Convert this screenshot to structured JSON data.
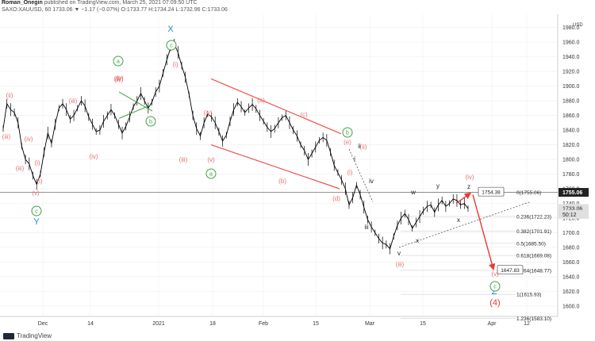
{
  "header": {
    "line1_author": "Roman_Onegin",
    "line1_rest": "published on TradingView.com, March 25, 2021 07:09:50 UTC",
    "line2": "SAXO:XAUUSD, 60  1733.06  ▼ −1.17 (−0.07%)  O:1733.77 H:1734.24 L:1732.96 C:1733.06"
  },
  "brand": {
    "name": "TradingView"
  },
  "chart_data": {
    "type": "line",
    "title": "",
    "series": [
      {
        "values": [
          1842,
          1876,
          1868,
          1864,
          1850,
          1818,
          1800,
          1794,
          1778,
          1766,
          1780,
          1810,
          1836,
          1822,
          1848,
          1870,
          1876,
          1868,
          1855,
          1860,
          1870,
          1880,
          1873,
          1858,
          1848,
          1838,
          1840,
          1852,
          1860,
          1868,
          1860,
          1848,
          1836,
          1845,
          1858,
          1872,
          1880,
          1890,
          1880,
          1870,
          1878,
          1892,
          1900,
          1918,
          1936,
          1952,
          1958,
          1946,
          1928,
          1912,
          1888,
          1860,
          1842,
          1832,
          1850,
          1862,
          1858,
          1850,
          1838,
          1825,
          1833,
          1852,
          1868,
          1878,
          1872,
          1864,
          1870,
          1875,
          1869,
          1860,
          1852,
          1844,
          1838,
          1842,
          1850,
          1857,
          1860,
          1850,
          1840,
          1832,
          1820,
          1812,
          1800,
          1808,
          1817,
          1826,
          1830,
          1826,
          1810,
          1792,
          1782,
          1772,
          1760,
          1738,
          1748,
          1765,
          1752,
          1735,
          1718,
          1708,
          1700,
          1692,
          1686,
          1684,
          1678,
          1695,
          1710,
          1720,
          1726,
          1718,
          1706,
          1714,
          1722,
          1730,
          1736,
          1738,
          1728,
          1738,
          1744,
          1736,
          1740,
          1746,
          1744,
          1738,
          1740,
          1733
        ]
      }
    ],
    "price_axis": {
      "currency": "USD",
      "ticks": [
        1980,
        1960,
        1940,
        1920,
        1900,
        1880,
        1860,
        1840,
        1820,
        1800,
        1780,
        1760,
        1740,
        1720,
        1700,
        1680,
        1660,
        1640,
        1620,
        1600
      ],
      "range": [
        1588,
        1998
      ]
    },
    "time_axis": {
      "labels": [
        "Dec",
        "14",
        "2021",
        "18",
        "Feb",
        "15",
        "Mar",
        "15",
        "Apr",
        "12"
      ]
    },
    "price_markers": [
      {
        "label": "1755.06",
        "price": 1755.06,
        "style": "dark"
      },
      {
        "label": "1733.06",
        "price": 1733.06,
        "style": "light"
      },
      {
        "label": "50:12",
        "price": 1725,
        "style": "light"
      }
    ],
    "fib_levels": [
      {
        "label": "0(1755.06)",
        "price": 1755.06
      },
      {
        "label": "0.236(1722.23)",
        "price": 1722.23
      },
      {
        "label": "0.382(1701.91)",
        "price": 1701.91
      },
      {
        "label": "0.5(1685.50)",
        "price": 1685.5
      },
      {
        "label": "0.618(1669.08)",
        "price": 1669.08
      },
      {
        "label": "0.764(1648.77)",
        "price": 1648.77
      },
      {
        "label": "1(1615.93)",
        "price": 1615.93
      },
      {
        "label": "1.236(1583.10)",
        "price": 1583.1
      }
    ],
    "callouts": [
      {
        "label": "1754.38",
        "price": 1754.38
      },
      {
        "label": "1647.83",
        "price": 1647.83
      }
    ],
    "wave_labels": [
      {
        "text": "(ii)",
        "color": "#e57373"
      },
      {
        "text": "(iii)",
        "color": "#e57373"
      },
      {
        "text": "(iv)",
        "color": "#e57373"
      },
      {
        "text": "(i)",
        "color": "#e57373"
      },
      {
        "text": "(v)",
        "color": "#e57373"
      },
      {
        "text": "(i)",
        "color": "#e57373"
      },
      {
        "text": "(iii)",
        "color": "#e57373"
      },
      {
        "text": "(iv)",
        "color": "#e57373"
      },
      {
        "text": "(iii)",
        "color": "#e57373"
      },
      {
        "text": "(iv)",
        "color": "#e57373"
      },
      {
        "text": "(v)",
        "color": "#e57373"
      },
      {
        "text": "(ii)",
        "color": "#e57373"
      },
      {
        "text": "(i)",
        "color": "#e57373"
      },
      {
        "text": "(iii)",
        "color": "#e57373"
      },
      {
        "text": "(iv)",
        "color": "#e57373"
      },
      {
        "text": "(v)",
        "color": "#e57373"
      },
      {
        "text": "(a)",
        "color": "#e57373"
      },
      {
        "text": "(b)",
        "color": "#e57373"
      },
      {
        "text": "(c)",
        "color": "#e57373"
      },
      {
        "text": "(d)",
        "color": "#e57373"
      },
      {
        "text": "(e)",
        "color": "#e57373"
      },
      {
        "text": "(ii)",
        "color": "#e57373"
      },
      {
        "text": "(i)",
        "color": "#e57373"
      },
      {
        "text": "(iii)",
        "color": "#e57373"
      },
      {
        "text": "(iv)",
        "color": "#e57373"
      },
      {
        "text": "(v)",
        "color": "#e57373"
      },
      {
        "text": "i",
        "color": "#222222"
      },
      {
        "text": "ii",
        "color": "#222222"
      },
      {
        "text": "iii",
        "color": "#222222"
      },
      {
        "text": "iv",
        "color": "#222222"
      },
      {
        "text": "v",
        "color": "#222222"
      },
      {
        "text": "w",
        "color": "#222222"
      },
      {
        "text": "x",
        "color": "#222222"
      },
      {
        "text": "y",
        "color": "#222222"
      },
      {
        "text": "x",
        "color": "#222222"
      },
      {
        "text": "z",
        "color": "#222222"
      },
      {
        "text": "X",
        "color": "#1e88e5"
      },
      {
        "text": "Y",
        "color": "#1e88e5"
      },
      {
        "text": "Z",
        "color": "#1e88e5"
      },
      {
        "text": "(4)",
        "color": "#e53935"
      }
    ],
    "circle_labels": [
      "a",
      "b",
      "c",
      "c",
      "a",
      "b",
      "c"
    ],
    "colors": {
      "candles": "#000000",
      "channel": "#ef5350",
      "wedge": "#43a047",
      "projection": "#e53935",
      "circle": "#43a047",
      "grid": "#eeeeee"
    },
    "grid": true
  }
}
